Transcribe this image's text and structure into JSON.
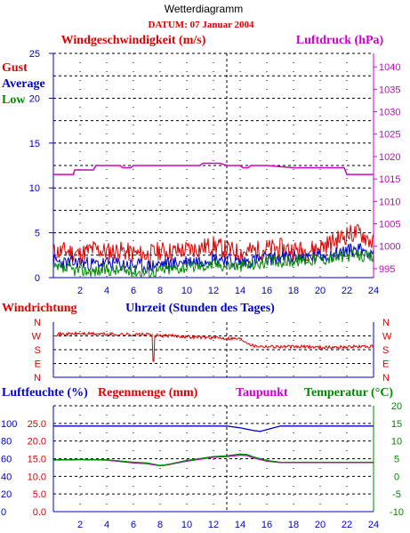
{
  "header": {
    "title": "Wetterdiagramm",
    "date_label": "DATUM: 07 Januar 2004"
  },
  "colors": {
    "gust": "#dd0000",
    "average": "#0000cc",
    "low": "#008800",
    "pressure": "#cc00cc",
    "humidity": "#0000cc",
    "rain": "#dd0000",
    "dewpoint": "#cc00cc",
    "temperature": "#008800",
    "direction": "#dd0000"
  },
  "chart_data": [
    {
      "type": "line",
      "title": "Windgeschwindigkeit (m/s)",
      "right_title": "Luftdruck (hPa)",
      "legend": [
        "Gust",
        "Average",
        "Low"
      ],
      "xlim": [
        0,
        24
      ],
      "x_ticks": [
        "2",
        "4",
        "6",
        "8",
        "10",
        "12",
        "14",
        "16",
        "18",
        "20",
        "22",
        "24"
      ],
      "ylim": [
        0,
        25
      ],
      "y_ticks": [
        "0",
        "5",
        "10",
        "15",
        "20",
        "25"
      ],
      "y2lim": [
        993,
        1043
      ],
      "y2_ticks": [
        "995",
        "1000",
        "1005",
        "1010",
        "1015",
        "1020",
        "1025",
        "1030",
        "1035",
        "1040"
      ],
      "series": [
        {
          "name": "Gust",
          "axis": "left",
          "x": [
            0,
            1,
            2,
            3,
            4,
            5,
            6,
            7,
            8,
            9,
            10,
            11,
            12,
            13,
            14,
            15,
            16,
            17,
            18,
            19,
            20,
            21,
            22,
            23,
            24
          ],
          "values": [
            2.8,
            3.0,
            2.6,
            3.2,
            2.9,
            3.0,
            2.7,
            2.5,
            3.0,
            2.9,
            3.1,
            3.3,
            3.6,
            3.1,
            2.8,
            3.0,
            3.2,
            3.3,
            3.1,
            3.0,
            3.4,
            4.0,
            4.8,
            5.0,
            3.8
          ]
        },
        {
          "name": "Average",
          "axis": "left",
          "x": [
            0,
            1,
            2,
            3,
            4,
            5,
            6,
            7,
            8,
            9,
            10,
            11,
            12,
            13,
            14,
            15,
            16,
            17,
            18,
            19,
            20,
            21,
            22,
            23,
            24
          ],
          "values": [
            1.8,
            1.6,
            1.7,
            1.5,
            1.6,
            1.5,
            1.4,
            1.2,
            1.5,
            1.6,
            1.8,
            1.9,
            2.2,
            2.0,
            1.7,
            1.9,
            2.1,
            2.2,
            2.3,
            2.2,
            2.4,
            2.6,
            3.0,
            3.2,
            2.8
          ]
        },
        {
          "name": "Low",
          "axis": "left",
          "x": [
            0,
            1,
            2,
            3,
            4,
            5,
            6,
            7,
            8,
            9,
            10,
            11,
            12,
            13,
            14,
            15,
            16,
            17,
            18,
            19,
            20,
            21,
            22,
            23,
            24
          ],
          "values": [
            1.0,
            0.9,
            0.8,
            0.7,
            0.9,
            0.8,
            0.7,
            0.6,
            0.8,
            1.0,
            1.2,
            1.3,
            1.5,
            1.4,
            1.3,
            1.5,
            1.7,
            1.8,
            1.9,
            2.0,
            2.1,
            2.2,
            2.4,
            2.5,
            2.2
          ]
        },
        {
          "name": "Luftdruck",
          "axis": "right",
          "x": [
            0,
            1.5,
            1.6,
            3,
            3.2,
            5,
            5.2,
            5.8,
            6,
            8,
            10,
            11,
            11.2,
            12,
            12.5,
            13,
            13.5,
            14,
            14.2,
            14.6,
            14.8,
            16,
            18,
            20,
            21.8,
            22,
            24
          ],
          "values": [
            1016.0,
            1016.0,
            1017.0,
            1017.0,
            1018.0,
            1018.0,
            1017.5,
            1017.5,
            1018.0,
            1018.0,
            1018.0,
            1018.0,
            1018.5,
            1018.5,
            1018.5,
            1018.0,
            1018.0,
            1018.0,
            1017.5,
            1017.5,
            1018.0,
            1018.0,
            1017.5,
            1017.5,
            1017.5,
            1016.0,
            1016.0
          ]
        }
      ]
    },
    {
      "type": "line",
      "title": "Windrichtung",
      "xlabel": "Uhrzeit (Stunden des Tages)",
      "xlim": [
        0,
        24
      ],
      "y_ticks": [
        "N",
        "W",
        "S",
        "E",
        "N"
      ],
      "ylim": [
        0,
        360
      ],
      "series": [
        {
          "name": "Windrichtung",
          "x": [
            0,
            1,
            2,
            3,
            4,
            5,
            6,
            7,
            7.4,
            7.5,
            7.6,
            8,
            9,
            10,
            11,
            12,
            13,
            14,
            14.5,
            15,
            16,
            17,
            18,
            19,
            20,
            21,
            22,
            23,
            24
          ],
          "values": [
            280,
            282,
            285,
            283,
            281,
            280,
            279,
            278,
            278,
            20,
            270,
            272,
            270,
            265,
            262,
            258,
            255,
            252,
            230,
            205,
            202,
            200,
            198,
            200,
            196,
            195,
            198,
            200,
            200
          ]
        }
      ]
    },
    {
      "type": "line",
      "legend": [
        "Luftfeuchte (%)",
        "Regenmenge (mm)",
        "Taupunkt",
        "Temperatur (°C)"
      ],
      "xlim": [
        0,
        24
      ],
      "x_ticks": [
        "2",
        "4",
        "6",
        "8",
        "10",
        "12",
        "14",
        "16",
        "18",
        "20",
        "22",
        "24"
      ],
      "y_humidity_ticks": [
        "0",
        "20",
        "40",
        "60",
        "80",
        "100"
      ],
      "y_rain_ticks": [
        "0.0",
        "5.0",
        "10.0",
        "15.0",
        "20.0",
        "25.0"
      ],
      "y_temp_ticks": [
        "-10",
        "-5",
        "0",
        "5",
        "10",
        "15",
        "20"
      ],
      "ylim_temp": [
        -10,
        20
      ],
      "series": [
        {
          "name": "Luftfeuchte",
          "axis": "humidity",
          "x": [
            0,
            2,
            4,
            6,
            8,
            10,
            12,
            13,
            14,
            15,
            15.5,
            16,
            17,
            18,
            20,
            22,
            24
          ],
          "values": [
            97,
            97,
            97,
            97,
            97,
            97,
            97,
            97,
            95,
            92,
            91,
            93,
            97,
            97,
            97,
            97,
            97
          ]
        },
        {
          "name": "Taupunkt",
          "axis": "temp",
          "x": [
            0,
            2,
            4,
            6,
            7,
            8,
            8.5,
            10,
            12,
            13,
            14,
            14.5,
            15,
            16,
            17,
            18,
            20,
            22,
            24
          ],
          "values": [
            4.6,
            4.7,
            4.6,
            3.8,
            3.6,
            3.0,
            3.2,
            4.3,
            5.4,
            5.6,
            6.0,
            5.9,
            5.2,
            4.3,
            3.9,
            3.9,
            3.9,
            3.9,
            3.9
          ]
        },
        {
          "name": "Temperatur",
          "axis": "temp",
          "x": [
            0,
            2,
            4,
            6,
            7,
            8,
            8.5,
            10,
            12,
            13,
            14,
            14.5,
            15,
            16,
            17,
            18,
            20,
            22,
            24
          ],
          "values": [
            4.7,
            4.8,
            4.7,
            4.0,
            3.8,
            3.1,
            3.3,
            4.5,
            5.6,
            5.8,
            6.3,
            6.2,
            5.5,
            4.5,
            4.0,
            4.0,
            4.0,
            4.0,
            4.0
          ]
        }
      ]
    }
  ]
}
